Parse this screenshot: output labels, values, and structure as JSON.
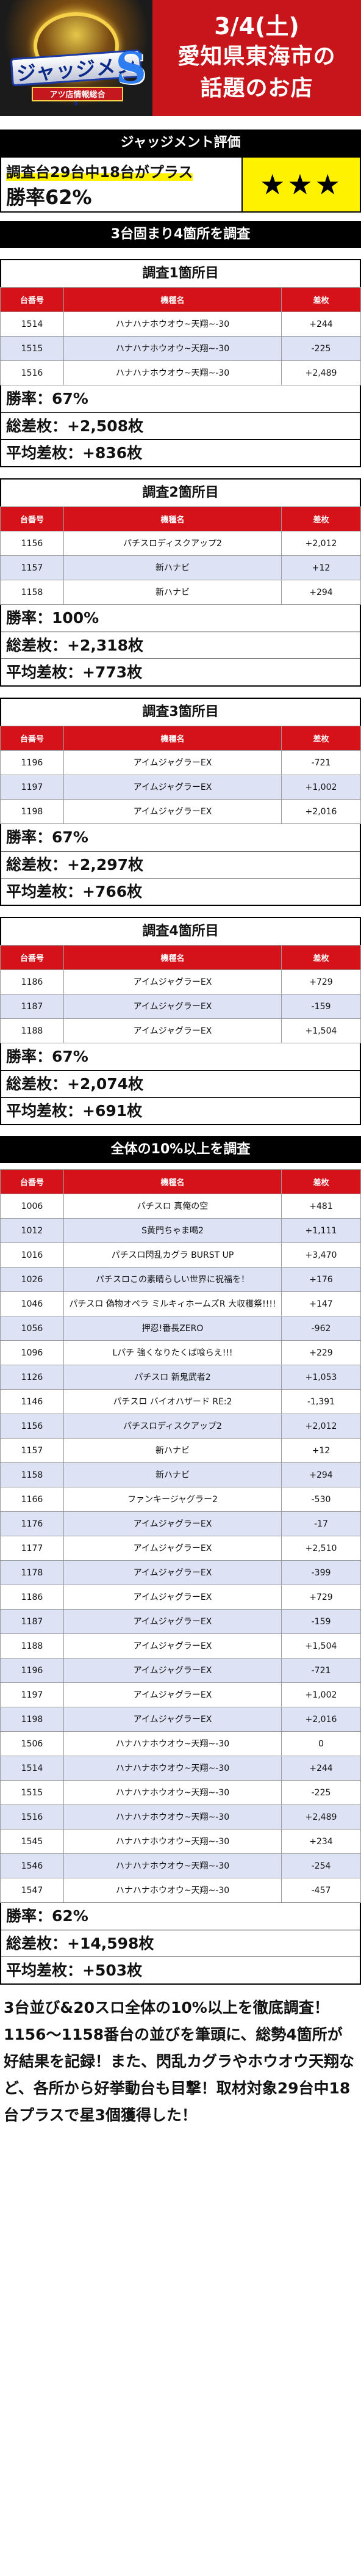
{
  "header": {
    "logo_text": "ジャッジメント",
    "logo_sub": "アツ店情報総合",
    "logo_mark": "S",
    "date": "3/4(土)",
    "line1": "愛知県東海市の",
    "line2": "話題のお店"
  },
  "evaluation": {
    "title": "ジャッジメント評価",
    "line1": "調査台29台中18台がプラス",
    "line2": "勝率62%",
    "stars": "★★★"
  },
  "section1_title": "3台固まり4箇所を調査",
  "columns": {
    "no": "台番号",
    "machine": "機種名",
    "diff": "差枚"
  },
  "surveys": [
    {
      "title": "調査1箇所目",
      "rows": [
        {
          "no": "1514",
          "machine": "ハナハナホウオウ~天翔~-30",
          "diff": "+244"
        },
        {
          "no": "1515",
          "machine": "ハナハナホウオウ~天翔~-30",
          "diff": "-225"
        },
        {
          "no": "1516",
          "machine": "ハナハナホウオウ~天翔~-30",
          "diff": "+2,489"
        }
      ],
      "win": "勝率：67%",
      "total": "総差枚：+2,508枚",
      "avg": "平均差枚：+836枚"
    },
    {
      "title": "調査2箇所目",
      "rows": [
        {
          "no": "1156",
          "machine": "パチスロディスクアップ2",
          "diff": "+2,012"
        },
        {
          "no": "1157",
          "machine": "新ハナビ",
          "diff": "+12"
        },
        {
          "no": "1158",
          "machine": "新ハナビ",
          "diff": "+294"
        }
      ],
      "win": "勝率：100%",
      "total": "総差枚：+2,318枚",
      "avg": "平均差枚：+773枚"
    },
    {
      "title": "調査3箇所目",
      "rows": [
        {
          "no": "1196",
          "machine": "アイムジャグラーEX",
          "diff": "-721"
        },
        {
          "no": "1197",
          "machine": "アイムジャグラーEX",
          "diff": "+1,002"
        },
        {
          "no": "1198",
          "machine": "アイムジャグラーEX",
          "diff": "+2,016"
        }
      ],
      "win": "勝率：67%",
      "total": "総差枚：+2,297枚",
      "avg": "平均差枚：+766枚"
    },
    {
      "title": "調査4箇所目",
      "rows": [
        {
          "no": "1186",
          "machine": "アイムジャグラーEX",
          "diff": "+729"
        },
        {
          "no": "1187",
          "machine": "アイムジャグラーEX",
          "diff": "-159"
        },
        {
          "no": "1188",
          "machine": "アイムジャグラーEX",
          "diff": "+1,504"
        }
      ],
      "win": "勝率：67%",
      "total": "総差枚：+2,074枚",
      "avg": "平均差枚：+691枚"
    }
  ],
  "section2_title": "全体の10%以上を調査",
  "overall": {
    "rows": [
      {
        "no": "1006",
        "machine": "パチスロ 真俺の空",
        "diff": "+481"
      },
      {
        "no": "1012",
        "machine": "S黄門ちゃま喝2",
        "diff": "+1,111"
      },
      {
        "no": "1016",
        "machine": "パチスロ閃乱カグラ BURST UP",
        "diff": "+3,470"
      },
      {
        "no": "1026",
        "machine": "パチスロこの素晴らしい世界に祝福を！",
        "diff": "+176"
      },
      {
        "no": "1046",
        "machine": "パチスロ 偽物オペラ ミルキィホームズR 大収穫祭!!!!",
        "diff": "+147"
      },
      {
        "no": "1056",
        "machine": "押忍!番長ZERO",
        "diff": "-962"
      },
      {
        "no": "1096",
        "machine": "Lパチ 強くなりたくば喰らえ!!!",
        "diff": "+229"
      },
      {
        "no": "1126",
        "machine": "パチスロ 新鬼武者2",
        "diff": "+1,053"
      },
      {
        "no": "1146",
        "machine": "パチスロ バイオハザード RE:2",
        "diff": "-1,391"
      },
      {
        "no": "1156",
        "machine": "パチスロディスクアップ2",
        "diff": "+2,012"
      },
      {
        "no": "1157",
        "machine": "新ハナビ",
        "diff": "+12"
      },
      {
        "no": "1158",
        "machine": "新ハナビ",
        "diff": "+294"
      },
      {
        "no": "1166",
        "machine": "ファンキージャグラー2",
        "diff": "-530"
      },
      {
        "no": "1176",
        "machine": "アイムジャグラーEX",
        "diff": "-17"
      },
      {
        "no": "1177",
        "machine": "アイムジャグラーEX",
        "diff": "+2,510"
      },
      {
        "no": "1178",
        "machine": "アイムジャグラーEX",
        "diff": "-399"
      },
      {
        "no": "1186",
        "machine": "アイムジャグラーEX",
        "diff": "+729"
      },
      {
        "no": "1187",
        "machine": "アイムジャグラーEX",
        "diff": "-159"
      },
      {
        "no": "1188",
        "machine": "アイムジャグラーEX",
        "diff": "+1,504"
      },
      {
        "no": "1196",
        "machine": "アイムジャグラーEX",
        "diff": "-721"
      },
      {
        "no": "1197",
        "machine": "アイムジャグラーEX",
        "diff": "+1,002"
      },
      {
        "no": "1198",
        "machine": "アイムジャグラーEX",
        "diff": "+2,016"
      },
      {
        "no": "1506",
        "machine": "ハナハナホウオウ~天翔~-30",
        "diff": "0"
      },
      {
        "no": "1514",
        "machine": "ハナハナホウオウ~天翔~-30",
        "diff": "+244"
      },
      {
        "no": "1515",
        "machine": "ハナハナホウオウ~天翔~-30",
        "diff": "-225"
      },
      {
        "no": "1516",
        "machine": "ハナハナホウオウ~天翔~-30",
        "diff": "+2,489"
      },
      {
        "no": "1545",
        "machine": "ハナハナホウオウ~天翔~-30",
        "diff": "+234"
      },
      {
        "no": "1546",
        "machine": "ハナハナホウオウ~天翔~-30",
        "diff": "-254"
      },
      {
        "no": "1547",
        "machine": "ハナハナホウオウ~天翔~-30",
        "diff": "-457"
      }
    ],
    "win": "勝率：62%",
    "total": "総差枚：+14,598枚",
    "avg": "平均差枚：+503枚"
  },
  "footer_text": "3台並び&20スロ全体の10%以上を徹底調査！1156～1158番台の並びを筆頭に、総勢4箇所が好結果を記録！また、閃乱カグラやホウオウ天翔など、各所から好挙動台も目撃！取材対象29台中18台プラスで星3個獲得した！"
}
